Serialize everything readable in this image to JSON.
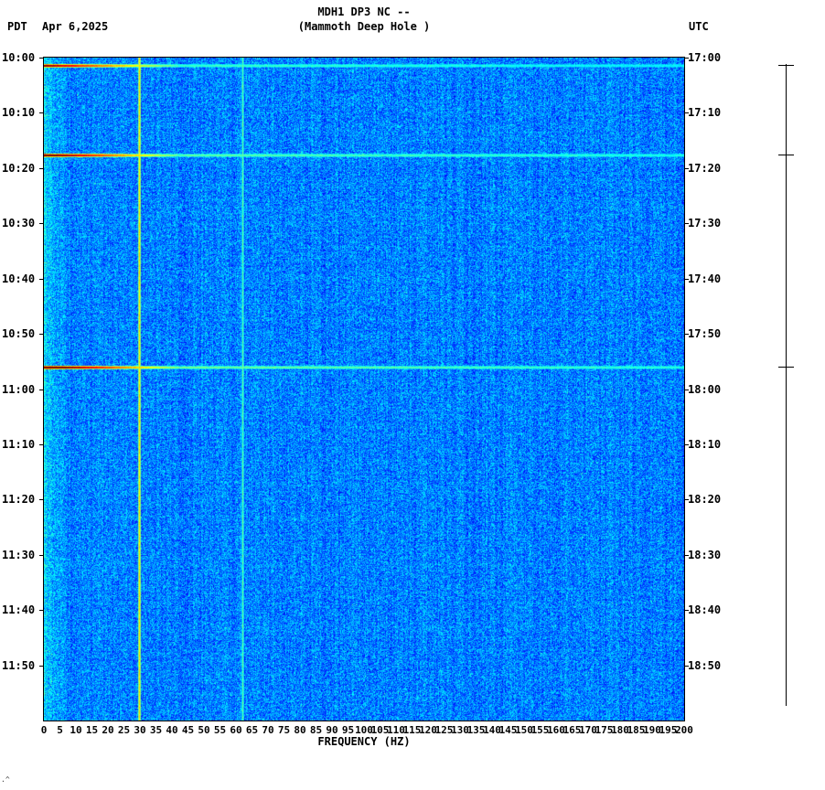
{
  "header": {
    "tz_left": "PDT",
    "date": "Apr 6,2025",
    "title": "MDH1 DP3 NC --",
    "subtitle": "(Mammoth Deep Hole )",
    "tz_right": "UTC"
  },
  "axes": {
    "left_time_labels": [
      "10:00",
      "10:10",
      "10:20",
      "10:30",
      "10:40",
      "10:50",
      "11:00",
      "11:10",
      "11:20",
      "11:30",
      "11:40",
      "11:50"
    ],
    "right_time_labels": [
      "17:00",
      "17:10",
      "17:20",
      "17:30",
      "17:40",
      "17:50",
      "18:00",
      "18:10",
      "18:20",
      "18:30",
      "18:40",
      "18:50"
    ],
    "time_label_interval_min": 10,
    "freq_ticks": [
      0,
      5,
      10,
      15,
      20,
      25,
      30,
      35,
      40,
      45,
      50,
      55,
      60,
      65,
      70,
      75,
      80,
      85,
      90,
      95,
      100,
      105,
      110,
      115,
      120,
      125,
      130,
      135,
      140,
      145,
      150,
      155,
      160,
      165,
      170,
      175,
      180,
      185,
      190,
      195,
      200
    ],
    "xlabel": "FREQUENCY (HZ)"
  },
  "corner_mark": ".^",
  "chart_data": {
    "type": "heatmap",
    "subtype": "spectrogram",
    "station": "MDH1 DP3 NC --",
    "station_name": "Mammoth Deep Hole",
    "date": "Apr 6,2025",
    "colormap": "jet",
    "x_axis": {
      "label": "FREQUENCY (HZ)",
      "min": 0,
      "max": 200,
      "tick_step": 5,
      "units": "Hz"
    },
    "y_axis": {
      "start_pdt": "10:00",
      "end_pdt": "12:00",
      "start_utc": "17:00",
      "end_utc": "19:00",
      "tick_interval_min": 10,
      "duration_min": 120
    },
    "background": {
      "description": "broadband blue noise, slightly elevated (cyan) below ~7 Hz at left edge",
      "value_range": [
        0.15,
        0.4
      ]
    },
    "noise_seed": 20250406,
    "events": [
      {
        "time_pdt": "10:01",
        "time_utc": "17:01",
        "minutes_after_start": 1.3,
        "strength": 0.93,
        "description": "broadband seismic event; dark red below ~10 Hz grading through orange/yellow to cyan, visible across full 0-200 Hz band"
      },
      {
        "time_pdt": "10:18",
        "time_utc": "17:18",
        "minutes_after_start": 17.6,
        "strength": 1.0,
        "description": "broadband seismic event; dark red below ~15 Hz, yellow near 30 Hz, faint cyan-yellow line continues to 200 Hz"
      },
      {
        "time_pdt": "10:56",
        "time_utc": "17:56",
        "minutes_after_start": 56.0,
        "strength": 1.04,
        "description": "strongest broadband seismic event; dark red to ~12 Hz, orange-yellow to ~35 Hz, green-cyan tail to 200 Hz"
      }
    ],
    "tonal_lines": [
      {
        "freq_hz": 29.7,
        "value": 0.6,
        "description": "persistent narrowband yellow-green tone near 30 Hz, full duration"
      },
      {
        "freq_hz": 62.0,
        "value": 0.42,
        "description": "faint narrowband tone near 62 Hz"
      }
    ]
  }
}
